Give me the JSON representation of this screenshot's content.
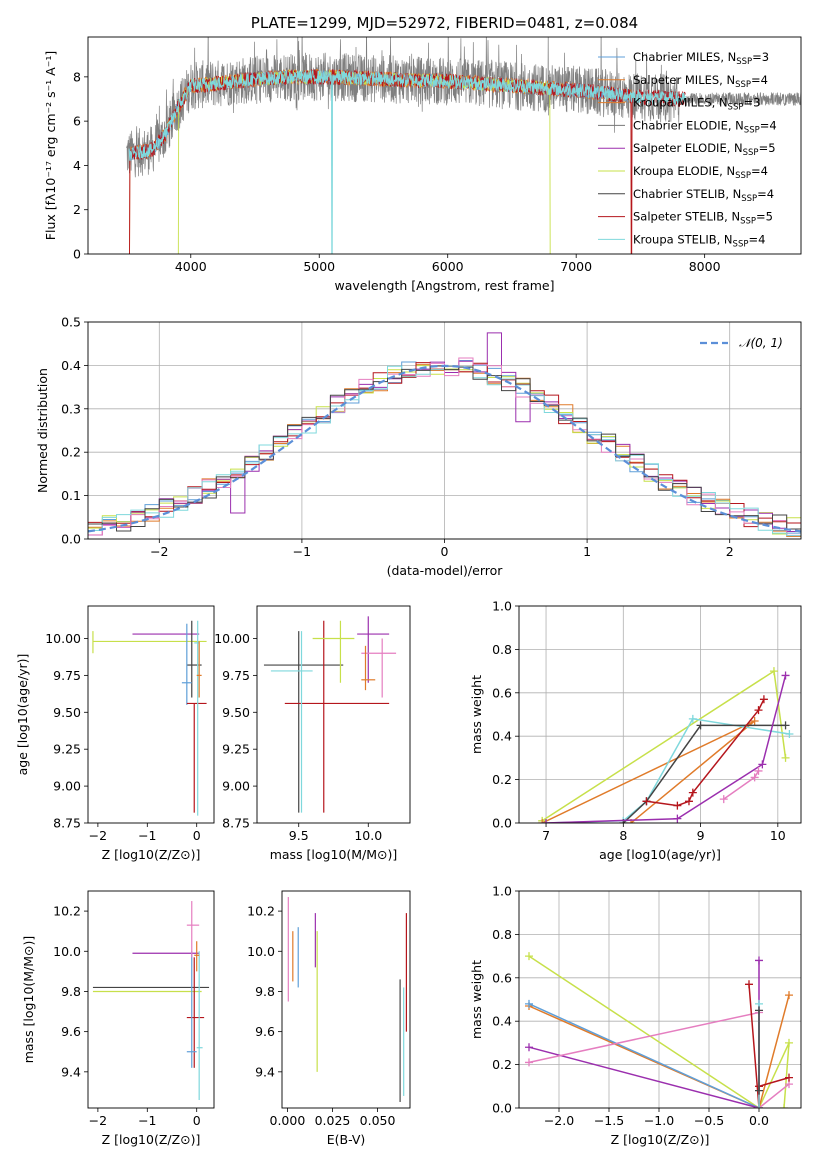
{
  "colors": {
    "chabrier_miles": "#5f9fd8",
    "salpeter_miles": "#e07b2a",
    "kroupa_miles": "#e07b2a",
    "chabrier_elodie": "#777777",
    "salpeter_elodie": "#9b2fae",
    "kroupa_elodie": "#c7e04a",
    "chabrier_stelib": "#444444",
    "salpeter_stelib": "#b5161d",
    "kroupa_stelib": "#7fd8dc",
    "pink": "#e57ec0",
    "normal_curve": "#5b8fd8"
  },
  "chart_data": [
    {
      "id": "spectrum",
      "type": "line",
      "title": "PLATE=1299, MJD=52972, FIBERID=0481, z=0.084",
      "xlabel": "wavelength [Angstrom, rest frame]",
      "ylabel": "Flux [fλ10⁻¹⁷ erg cm⁻² s⁻¹ A⁻¹]",
      "xlim": [
        3200,
        8750
      ],
      "ylim": [
        0,
        9.8
      ],
      "xticks": [
        "4000",
        "5000",
        "6000",
        "7000",
        "8000"
      ],
      "yticks": [
        "0",
        "2",
        "4",
        "6",
        "8"
      ],
      "grid": false,
      "legend_position": "right",
      "legend": [
        {
          "label": "Chabrier MILES, N",
          "sub": "SSP",
          "tail": "=3",
          "color": "chabrier_miles"
        },
        {
          "label": "Salpeter MILES, N",
          "sub": "SSP",
          "tail": "=4",
          "color": "salpeter_miles"
        },
        {
          "label": "Kroupa MILES, N",
          "sub": "SSP",
          "tail": "=3",
          "color": "kroupa_miles"
        },
        {
          "label": "Chabrier ELODIE, N",
          "sub": "SSP",
          "tail": "=4",
          "color": "chabrier_elodie"
        },
        {
          "label": "Salpeter ELODIE, N",
          "sub": "SSP",
          "tail": "=5",
          "color": "salpeter_elodie"
        },
        {
          "label": "Kroupa ELODIE, N",
          "sub": "SSP",
          "tail": "=4",
          "color": "kroupa_elodie"
        },
        {
          "label": "Chabrier STELIB, N",
          "sub": "SSP",
          "tail": "=4",
          "color": "chabrier_stelib"
        },
        {
          "label": "Salpeter STELIB, N",
          "sub": "SSP",
          "tail": "=5",
          "color": "salpeter_stelib"
        },
        {
          "label": "Kroupa STELIB, N",
          "sub": "SSP",
          "tail": "=4",
          "color": "kroupa_stelib"
        }
      ],
      "continuum": {
        "x": [
          3520,
          3700,
          3800,
          3900,
          4000,
          4200,
          4500,
          4800,
          5100,
          5500,
          6000,
          6500,
          7000,
          7500,
          7800
        ],
        "y": [
          4.5,
          4.7,
          5.4,
          6.6,
          7.6,
          7.7,
          7.9,
          8.0,
          8.0,
          7.9,
          7.8,
          7.6,
          7.4,
          7.1,
          7.0
        ]
      },
      "spectrum_ranges": {
        "data": [
          3500,
          8750
        ],
        "miles": [
          3520,
          7430
        ],
        "elodie": [
          3900,
          6800
        ],
        "stelib": [
          3520,
          7850
        ]
      }
    },
    {
      "id": "residuals",
      "type": "histogram",
      "xlabel": "(data-model)/error",
      "ylabel": "Normed distribution",
      "xlim": [
        -2.5,
        2.5
      ],
      "ylim": [
        0,
        0.5
      ],
      "xticks": [
        "−2",
        "−1",
        "0",
        "1",
        "2"
      ],
      "yticks": [
        "0.0",
        "0.1",
        "0.2",
        "0.3",
        "0.4",
        "0.5"
      ],
      "grid": true,
      "legend_position": "top-right",
      "legend_label": "𝒩(0, 1)",
      "bin_width": 0.1
    },
    {
      "id": "age-vs-Z",
      "type": "errorbar",
      "xlabel": "Z [log10(Z/Z⊙)]",
      "ylabel": "age  [log10(age/yr)]",
      "xlim": [
        -2.2,
        0.35
      ],
      "ylim": [
        8.75,
        10.22
      ],
      "xticks": [
        "−2",
        "−1",
        "0"
      ],
      "yticks": [
        "8.75",
        "9.00",
        "9.25",
        "9.50",
        "9.75",
        "10.00"
      ],
      "points": [
        {
          "x": -1.3,
          "y": 10.03,
          "xl": -1.3,
          "xh": 0.05,
          "yl": 10.03,
          "yh": 10.03,
          "c": "salpeter_elodie"
        },
        {
          "x": -2.1,
          "y": 9.98,
          "xl": -2.1,
          "xh": 0.2,
          "yl": 9.9,
          "yh": 10.05,
          "c": "kroupa_elodie"
        },
        {
          "x": -0.1,
          "y": 9.82,
          "xl": -0.2,
          "xh": 0.1,
          "yl": 9.6,
          "yh": 10.12,
          "c": "chabrier_stelib"
        },
        {
          "x": -0.2,
          "y": 9.7,
          "xl": -0.3,
          "xh": -0.1,
          "yl": 9.55,
          "yh": 10.1,
          "c": "chabrier_miles"
        },
        {
          "x": -0.05,
          "y": 9.56,
          "xl": -0.2,
          "xh": 0.2,
          "yl": 8.82,
          "yh": 9.56,
          "c": "salpeter_stelib"
        },
        {
          "x": 0.02,
          "y": 9.97,
          "xl": -0.05,
          "xh": 0.05,
          "yl": 8.8,
          "yh": 10.12,
          "c": "kroupa_stelib"
        },
        {
          "x": 0.05,
          "y": 9.75,
          "xl": 0.0,
          "xh": 0.1,
          "yl": 9.6,
          "yh": 9.98,
          "c": "salpeter_miles"
        }
      ]
    },
    {
      "id": "age-vs-mass",
      "type": "errorbar",
      "xlabel": "mass [log10(M/M⊙)]",
      "ylabel": "",
      "xlim": [
        9.2,
        10.3
      ],
      "ylim": [
        8.75,
        10.22
      ],
      "xticks": [
        "9.5",
        "10.0"
      ],
      "yticks": [
        "8.75",
        "9.00",
        "9.25",
        "9.50",
        "9.75",
        "10.00"
      ],
      "points": [
        {
          "x": 9.5,
          "y": 9.82,
          "xl": 9.25,
          "xh": 9.82,
          "yl": 8.82,
          "yh": 10.05,
          "c": "chabrier_stelib"
        },
        {
          "x": 9.68,
          "y": 9.56,
          "xl": 9.4,
          "xh": 10.15,
          "yl": 8.82,
          "yh": 10.12,
          "c": "salpeter_stelib"
        },
        {
          "x": 9.8,
          "y": 10.0,
          "xl": 9.6,
          "xh": 9.9,
          "yl": 9.7,
          "yh": 10.12,
          "c": "kroupa_elodie"
        },
        {
          "x": 10.0,
          "y": 10.03,
          "xl": 9.92,
          "xh": 10.15,
          "yl": 9.7,
          "yh": 10.15,
          "c": "salpeter_elodie"
        },
        {
          "x": 10.1,
          "y": 9.9,
          "xl": 9.95,
          "xh": 10.2,
          "yl": 9.6,
          "yh": 10.0,
          "c": "pink"
        },
        {
          "x": 9.52,
          "y": 9.78,
          "xl": 9.3,
          "xh": 9.6,
          "yl": 8.82,
          "yh": 10.05,
          "c": "kroupa_stelib"
        },
        {
          "x": 9.98,
          "y": 9.72,
          "xl": 9.95,
          "xh": 10.05,
          "yl": 9.65,
          "yh": 9.95,
          "c": "salpeter_miles"
        }
      ]
    },
    {
      "id": "weight-vs-age",
      "type": "line",
      "xlabel": "age  [log10(age/yr)]",
      "ylabel": "mass weight",
      "xlim": [
        6.65,
        10.3
      ],
      "ylim": [
        0,
        1.0
      ],
      "xticks": [
        "7",
        "8",
        "9",
        "10"
      ],
      "yticks": [
        "0.0",
        "0.2",
        "0.4",
        "0.6",
        "0.8",
        "1.0"
      ],
      "grid": true,
      "series": [
        {
          "c": "kroupa_elodie",
          "x": [
            6.95,
            9.95,
            10.1
          ],
          "y": [
            0.01,
            0.7,
            0.3
          ]
        },
        {
          "c": "salpeter_miles",
          "x": [
            6.95,
            9.7,
            8.1
          ],
          "y": [
            0.0,
            0.47,
            0.0
          ]
        },
        {
          "c": "kroupa_stelib",
          "x": [
            7.0,
            8.0,
            8.3,
            8.9,
            10.15
          ],
          "y": [
            0.0,
            0.01,
            0.1,
            0.48,
            0.41
          ]
        },
        {
          "c": "chabrier_stelib",
          "x": [
            8.0,
            8.3,
            9.0,
            10.1
          ],
          "y": [
            0.0,
            0.1,
            0.45,
            0.45
          ]
        },
        {
          "c": "salpeter_elodie",
          "x": [
            7.0,
            8.7,
            9.8,
            10.1
          ],
          "y": [
            0.0,
            0.02,
            0.27,
            0.68
          ]
        },
        {
          "c": "salpeter_stelib",
          "x": [
            8.3,
            8.7,
            8.85,
            8.9,
            9.75,
            9.82
          ],
          "y": [
            0.1,
            0.08,
            0.1,
            0.14,
            0.52,
            0.57
          ]
        },
        {
          "c": "pink",
          "x": [
            9.3,
            9.7,
            9.75
          ],
          "y": [
            0.11,
            0.21,
            0.24
          ]
        }
      ]
    },
    {
      "id": "mass-vs-Z",
      "type": "errorbar",
      "xlabel": "Z [log10(Z/Z⊙)]",
      "ylabel": "mass [log10(M/M⊙)]",
      "xlim": [
        -2.2,
        0.35
      ],
      "ylim": [
        9.22,
        10.3
      ],
      "xticks": [
        "−2",
        "−1",
        "0"
      ],
      "yticks": [
        "9.4",
        "9.6",
        "9.8",
        "10.0",
        "10.2"
      ],
      "points": [
        {
          "x": -1.3,
          "y": 9.99,
          "xl": -1.3,
          "xh": 0.05,
          "yl": 9.99,
          "yh": 9.99,
          "c": "salpeter_elodie"
        },
        {
          "x": -2.1,
          "y": 9.82,
          "xl": -2.1,
          "xh": 0.25,
          "yl": 9.82,
          "yh": 9.82,
          "c": "chabrier_stelib"
        },
        {
          "x": -2.1,
          "y": 9.8,
          "xl": -2.1,
          "xh": 0.1,
          "yl": 9.8,
          "yh": 9.8,
          "c": "kroupa_elodie"
        },
        {
          "x": -0.05,
          "y": 9.67,
          "xl": -0.2,
          "xh": 0.15,
          "yl": 9.42,
          "yh": 9.97,
          "c": "salpeter_stelib"
        },
        {
          "x": -0.1,
          "y": 9.5,
          "xl": -0.2,
          "xh": 0.0,
          "yl": 9.42,
          "yh": 10.0,
          "c": "chabrier_miles"
        },
        {
          "x": -0.1,
          "y": 10.13,
          "xl": -0.2,
          "xh": 0.05,
          "yl": 9.97,
          "yh": 10.25,
          "c": "pink"
        },
        {
          "x": 0.05,
          "y": 9.52,
          "xl": 0.0,
          "xh": 0.12,
          "yl": 9.26,
          "yh": 10.0,
          "c": "kroupa_stelib"
        },
        {
          "x": 0.0,
          "y": 9.98,
          "xl": -0.05,
          "xh": 0.05,
          "yl": 9.9,
          "yh": 10.05,
          "c": "salpeter_miles"
        }
      ]
    },
    {
      "id": "mass-vs-ebv",
      "type": "errorbar",
      "xlabel": "E(B-V)",
      "ylabel": "",
      "xlim": [
        -0.003,
        0.068
      ],
      "ylim": [
        9.22,
        10.3
      ],
      "xticks": [
        "0.000",
        "0.025",
        "0.050"
      ],
      "yticks": [
        "9.4",
        "9.6",
        "9.8",
        "10.0",
        "10.2"
      ],
      "points": [
        {
          "x": 0.0005,
          "y": 10.05,
          "xl": 0.0005,
          "xh": 0.0005,
          "yl": 9.75,
          "yh": 10.27,
          "c": "pink"
        },
        {
          "x": 0.003,
          "y": 10.0,
          "xl": 0.003,
          "xh": 0.003,
          "yl": 9.85,
          "yh": 10.1,
          "c": "salpeter_miles"
        },
        {
          "x": 0.006,
          "y": 10.0,
          "xl": 0.006,
          "xh": 0.006,
          "yl": 9.82,
          "yh": 10.12,
          "c": "chabrier_miles"
        },
        {
          "x": 0.0155,
          "y": 10.05,
          "xl": 0.0155,
          "xh": 0.0155,
          "yl": 9.92,
          "yh": 10.19,
          "c": "salpeter_elodie"
        },
        {
          "x": 0.0165,
          "y": 9.75,
          "xl": 0.0165,
          "xh": 0.0165,
          "yl": 9.4,
          "yh": 10.1,
          "c": "kroupa_elodie"
        },
        {
          "x": 0.0625,
          "y": 9.55,
          "xl": 0.0625,
          "xh": 0.0625,
          "yl": 9.25,
          "yh": 9.86,
          "c": "chabrier_stelib"
        },
        {
          "x": 0.0645,
          "y": 9.6,
          "xl": 0.0645,
          "xh": 0.0645,
          "yl": 9.28,
          "yh": 9.82,
          "c": "kroupa_stelib"
        },
        {
          "x": 0.066,
          "y": 9.9,
          "xl": 0.066,
          "xh": 0.066,
          "yl": 9.6,
          "yh": 10.19,
          "c": "salpeter_stelib"
        }
      ]
    },
    {
      "id": "weight-vs-Z",
      "type": "line",
      "xlabel": "Z [log10(Z/Z⊙)]",
      "ylabel": "mass weight",
      "xlim": [
        -2.4,
        0.42
      ],
      "ylim": [
        0,
        1.0
      ],
      "xticks": [
        "−2.0",
        "−1.5",
        "−1.0",
        "−0.5",
        "0.0"
      ],
      "yticks": [
        "0.0",
        "0.2",
        "0.4",
        "0.6",
        "0.8",
        "1.0"
      ],
      "grid": true,
      "series": [
        {
          "c": "kroupa_elodie",
          "x": [
            -2.3,
            0.0,
            0.3,
            0.25
          ],
          "y": [
            0.7,
            0.0,
            0.3,
            0.0
          ]
        },
        {
          "c": "salpeter_miles",
          "x": [
            -2.3,
            0.0,
            0.3
          ],
          "y": [
            0.47,
            0.0,
            0.52
          ]
        },
        {
          "c": "chabrier_miles",
          "x": [
            -2.3,
            0.0
          ],
          "y": [
            0.48,
            0.0
          ]
        },
        {
          "c": "salpeter_elodie",
          "x": [
            -2.3,
            0.0,
            0.0
          ],
          "y": [
            0.28,
            0.0,
            0.68
          ]
        },
        {
          "c": "pink",
          "x": [
            -2.3,
            0.0,
            0.0,
            0.3
          ],
          "y": [
            0.21,
            0.44,
            0.0,
            0.11
          ]
        },
        {
          "c": "salpeter_stelib",
          "x": [
            -0.1,
            0.0,
            0.0,
            0.3
          ],
          "y": [
            0.57,
            0.0,
            0.1,
            0.14
          ]
        },
        {
          "c": "kroupa_stelib",
          "x": [
            0.0,
            0.0
          ],
          "y": [
            0.48,
            0.0
          ]
        },
        {
          "c": "chabrier_stelib",
          "x": [
            0.0,
            0.0
          ],
          "y": [
            0.45,
            0.08
          ]
        }
      ]
    }
  ]
}
